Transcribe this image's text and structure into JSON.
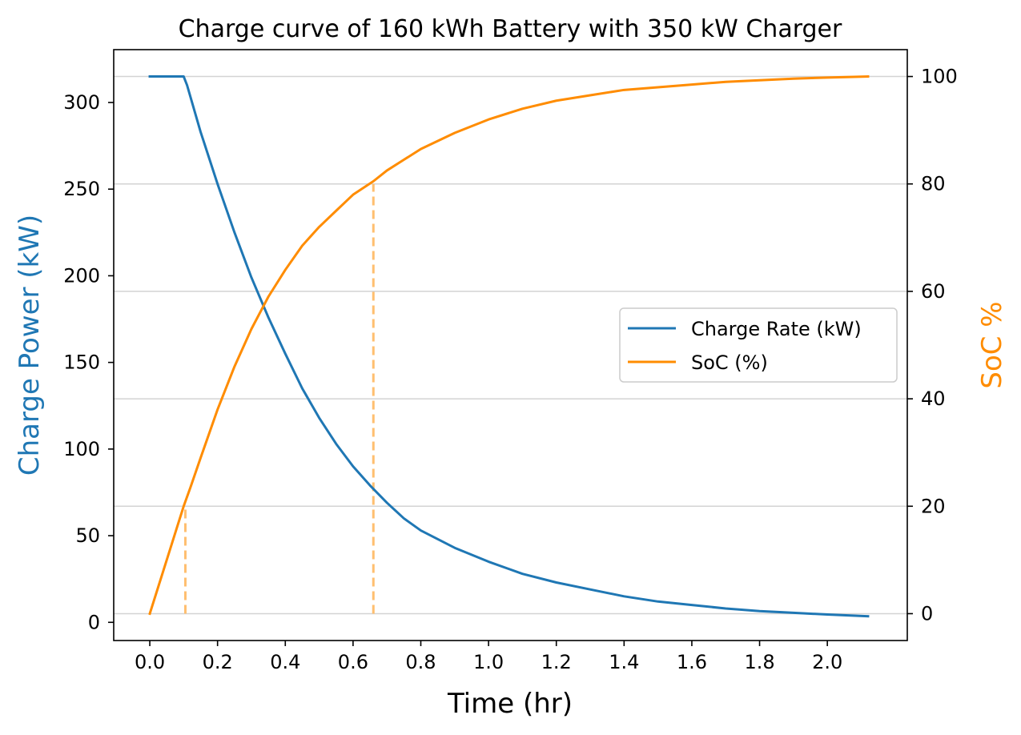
{
  "chart_data": {
    "type": "line",
    "title": "Charge curve of 160 kWh Battery with 350 kW Charger",
    "xlabel": "Time (hr)",
    "ylabel_left": "Charge Power (kW)",
    "ylabel_right": "SoC %",
    "xlim": [
      -0.1065,
      2.236
    ],
    "ylim_left": [
      -10.5,
      330.5
    ],
    "ylim_right": [
      -5,
      105
    ],
    "x_ticks": [
      0.0,
      0.2,
      0.4,
      0.6,
      0.8,
      1.0,
      1.2,
      1.4,
      1.6,
      1.8,
      2.0
    ],
    "x_tick_labels": [
      "0.0",
      "0.2",
      "0.4",
      "0.6",
      "0.8",
      "1.0",
      "1.2",
      "1.4",
      "1.6",
      "1.8",
      "2.0"
    ],
    "y_left_ticks": [
      0,
      50,
      100,
      150,
      200,
      250,
      300
    ],
    "y_left_tick_labels": [
      "0",
      "50",
      "100",
      "150",
      "200",
      "250",
      "300"
    ],
    "y_right_ticks": [
      0,
      20,
      40,
      60,
      80,
      100
    ],
    "y_right_tick_labels": [
      "0",
      "20",
      "40",
      "60",
      "80",
      "100"
    ],
    "grid": "horizontal, at right-axis ticks",
    "legend_position": "center-right",
    "colors": {
      "charge_rate": "#1f77b4",
      "soc": "#ff8c00",
      "marker_line": "#ffbf70",
      "grid": "#d3d3d3"
    },
    "series": [
      {
        "name": "Charge Rate (kW)",
        "axis": "left",
        "x": [
          0.0,
          0.02,
          0.04,
          0.06,
          0.08,
          0.1,
          0.11,
          0.15,
          0.2,
          0.25,
          0.3,
          0.35,
          0.4,
          0.45,
          0.5,
          0.55,
          0.6,
          0.65,
          0.7,
          0.75,
          0.8,
          0.9,
          1.0,
          1.1,
          1.2,
          1.3,
          1.4,
          1.5,
          1.6,
          1.7,
          1.8,
          1.9,
          2.0,
          2.12
        ],
        "values": [
          315,
          315,
          315,
          315,
          315,
          315,
          310,
          283,
          253,
          225,
          199,
          176,
          155,
          135,
          118,
          103,
          90,
          79,
          69,
          60,
          53,
          43,
          35,
          28,
          23,
          19,
          15,
          12,
          10,
          8,
          6.5,
          5.5,
          4.5,
          3.5
        ]
      },
      {
        "name": "SoC (%)",
        "axis": "right",
        "x": [
          0.0,
          0.02,
          0.04,
          0.06,
          0.08,
          0.1,
          0.12,
          0.15,
          0.2,
          0.25,
          0.3,
          0.35,
          0.4,
          0.45,
          0.5,
          0.55,
          0.6,
          0.66,
          0.7,
          0.75,
          0.8,
          0.9,
          1.0,
          1.1,
          1.2,
          1.3,
          1.4,
          1.5,
          1.6,
          1.7,
          1.8,
          1.9,
          2.0,
          2.12
        ],
        "values": [
          0,
          4,
          8,
          12,
          16,
          20,
          23.5,
          29,
          38,
          46,
          53,
          59,
          64,
          68.5,
          72,
          75,
          78,
          80.5,
          82.5,
          84.5,
          86.5,
          89.5,
          92,
          94,
          95.5,
          96.5,
          97.5,
          98,
          98.5,
          99,
          99.3,
          99.6,
          99.8,
          100
        ]
      }
    ],
    "reference_lines": [
      {
        "x": 0.105,
        "soc": 20
      },
      {
        "x": 0.66,
        "soc": 80
      }
    ]
  }
}
